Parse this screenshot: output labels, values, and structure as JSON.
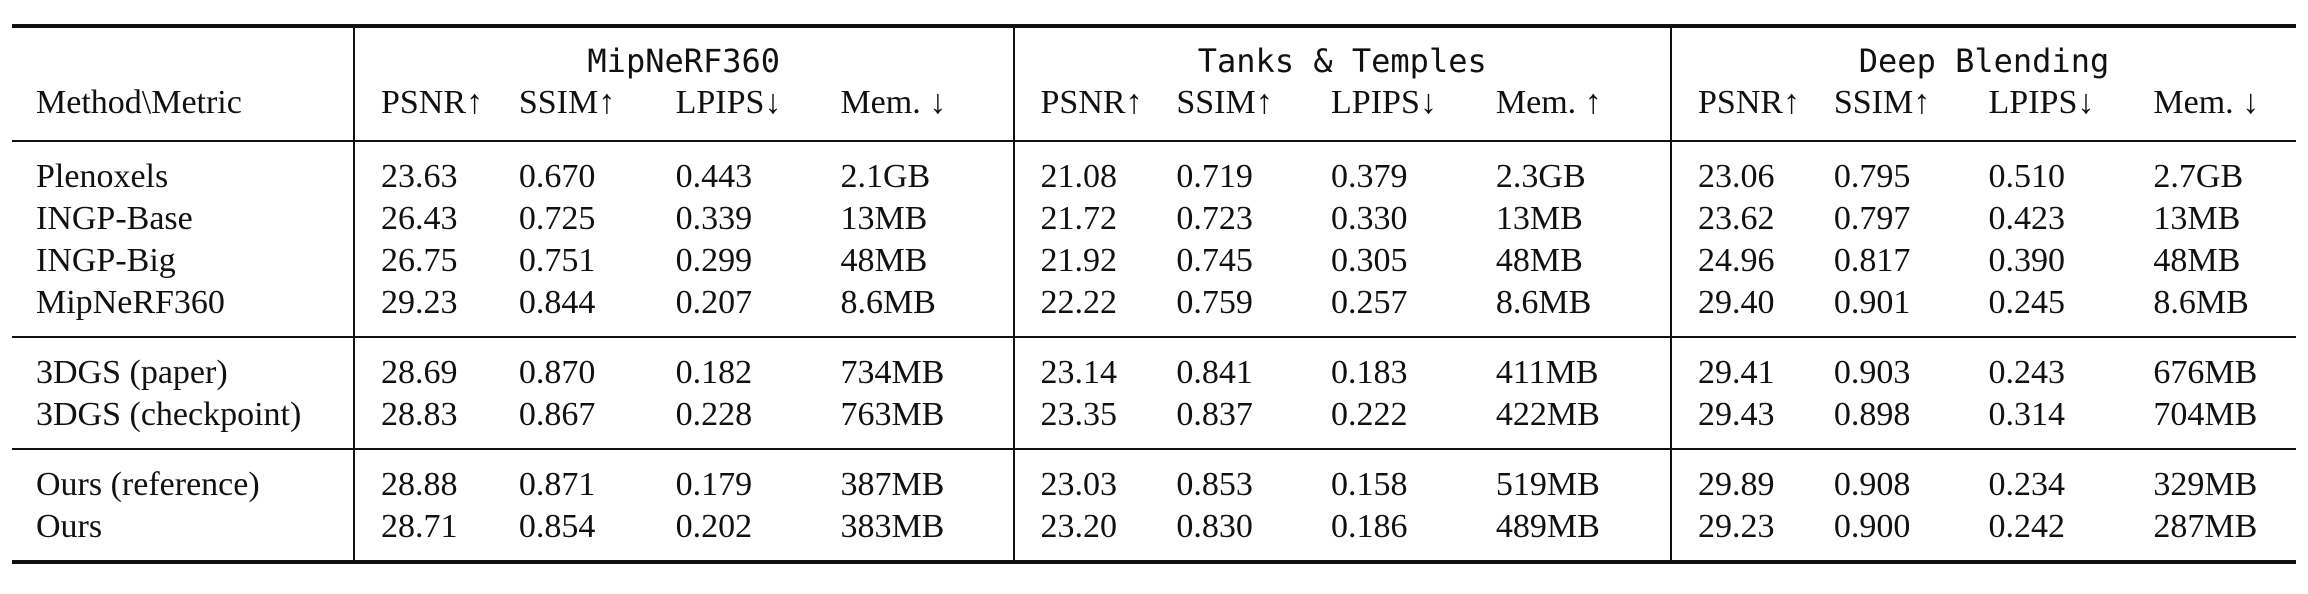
{
  "table": {
    "corner_label": "Method\\Metric",
    "groups": [
      {
        "name": "MipNeRF360",
        "metrics": [
          "PSNR↑",
          "SSIM↑",
          "LPIPS↓",
          "Mem. ↓"
        ]
      },
      {
        "name": "Tanks & Temples",
        "metrics": [
          "PSNR↑",
          "SSIM↑",
          "LPIPS↓",
          "Mem. ↑"
        ]
      },
      {
        "name": "Deep Blending",
        "metrics": [
          "PSNR↑",
          "SSIM↑",
          "LPIPS↓",
          "Mem. ↓"
        ]
      }
    ],
    "blocks": [
      {
        "rows": [
          {
            "method": "Plenoxels",
            "values": [
              "23.63",
              "0.670",
              "0.443",
              "2.1GB",
              "21.08",
              "0.719",
              "0.379",
              "2.3GB",
              "23.06",
              "0.795",
              "0.510",
              "2.7GB"
            ]
          },
          {
            "method": "INGP-Base",
            "values": [
              "26.43",
              "0.725",
              "0.339",
              "13MB",
              "21.72",
              "0.723",
              "0.330",
              "13MB",
              "23.62",
              "0.797",
              "0.423",
              "13MB"
            ]
          },
          {
            "method": "INGP-Big",
            "values": [
              "26.75",
              "0.751",
              "0.299",
              "48MB",
              "21.92",
              "0.745",
              "0.305",
              "48MB",
              "24.96",
              "0.817",
              "0.390",
              "48MB"
            ]
          },
          {
            "method": "MipNeRF360",
            "values": [
              "29.23",
              "0.844",
              "0.207",
              "8.6MB",
              "22.22",
              "0.759",
              "0.257",
              "8.6MB",
              "29.40",
              "0.901",
              "0.245",
              "8.6MB"
            ]
          }
        ]
      },
      {
        "rows": [
          {
            "method": "3DGS (paper)",
            "values": [
              "28.69",
              "0.870",
              "0.182",
              "734MB",
              "23.14",
              "0.841",
              "0.183",
              "411MB",
              "29.41",
              "0.903",
              "0.243",
              "676MB"
            ]
          },
          {
            "method": "3DGS (checkpoint)",
            "values": [
              "28.83",
              "0.867",
              "0.228",
              "763MB",
              "23.35",
              "0.837",
              "0.222",
              "422MB",
              "29.43",
              "0.898",
              "0.314",
              "704MB"
            ]
          }
        ]
      },
      {
        "rows": [
          {
            "method": "Ours (reference)",
            "values": [
              "28.88",
              "0.871",
              "0.179",
              "387MB",
              "23.03",
              "0.853",
              "0.158",
              "519MB",
              "29.89",
              "0.908",
              "0.234",
              "329MB"
            ]
          },
          {
            "method": "Ours",
            "values": [
              "28.71",
              "0.854",
              "0.202",
              "383MB",
              "23.20",
              "0.830",
              "0.186",
              "489MB",
              "29.23",
              "0.900",
              "0.242",
              "287MB"
            ]
          }
        ]
      }
    ]
  }
}
